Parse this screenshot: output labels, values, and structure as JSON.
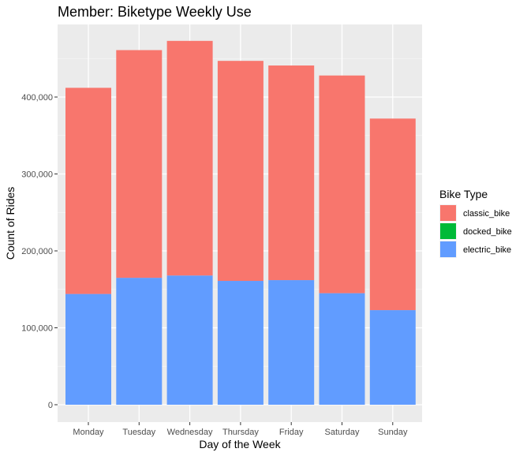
{
  "chart_data": {
    "type": "bar",
    "stacked": true,
    "title": "Member: Biketype Weekly Use",
    "xlabel": "Day of the Week",
    "ylabel": "Count of Rides",
    "categories": [
      "Monday",
      "Tuesday",
      "Wednesday",
      "Thursday",
      "Friday",
      "Saturday",
      "Sunday"
    ],
    "series": [
      {
        "name": "classic_bike",
        "color": "#F8766D",
        "values": [
          268000,
          296000,
          305000,
          286000,
          279000,
          283000,
          249000
        ]
      },
      {
        "name": "docked_bike",
        "color": "#00BA38",
        "values": [
          0,
          0,
          0,
          0,
          0,
          0,
          0
        ]
      },
      {
        "name": "electric_bike",
        "color": "#619CFF",
        "values": [
          144000,
          165000,
          168000,
          161000,
          162000,
          145000,
          123000
        ]
      }
    ],
    "stack_order_bottom_to_top": [
      "electric_bike",
      "docked_bike",
      "classic_bike"
    ],
    "yticks": [
      0,
      100000,
      200000,
      300000,
      400000
    ],
    "ytick_labels": [
      "0",
      "100,000",
      "200,000",
      "300,000",
      "400,000"
    ],
    "ylim": [
      0,
      500000
    ],
    "grid": true,
    "legend": {
      "title": "Bike Type",
      "placement": "right"
    }
  }
}
